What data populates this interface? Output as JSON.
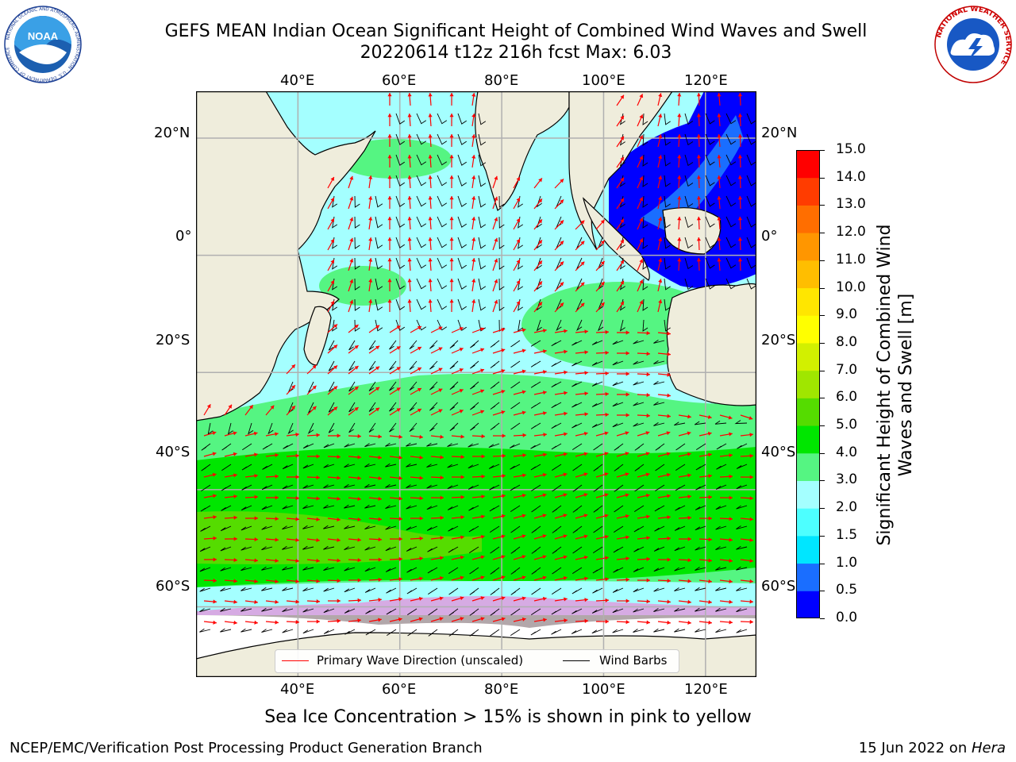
{
  "title": {
    "line1": "GEFS MEAN Indian Ocean Significant Height of Combined Wind Waves and Swell",
    "line2": "20220614 t12z 216h fcst   Max: 6.03"
  },
  "logos": {
    "left": {
      "icon": "noaa-logo",
      "text": "NOAA",
      "ring_text": "NATIONAL OCEANIC AND ATMOSPHERIC ADMINISTRATION · U.S. DEPARTMENT OF COMMERCE"
    },
    "right": {
      "icon": "nws-logo",
      "ring_text": "NATIONAL WEATHER SERVICE"
    }
  },
  "map": {
    "projection": "equirectangular",
    "lon_range": [
      20,
      130
    ],
    "lat_range": [
      -72,
      28
    ],
    "grid": true,
    "lon_ticks_top": [
      "40°E",
      "60°E",
      "80°E",
      "100°E",
      "120°E"
    ],
    "lon_ticks_bottom": [
      "40°E",
      "60°E",
      "80°E",
      "100°E",
      "120°E"
    ],
    "lat_ticks_left": [
      "20°N",
      "0°",
      "20°S",
      "40°S",
      "60°S"
    ],
    "lat_ticks_right": [
      "20°N",
      "0°",
      "20°S",
      "40°S",
      "60°S"
    ],
    "colors": {
      "land": "#efeddc",
      "ice": "#ffffff",
      "vector": "#ff0000",
      "barb": "#000000",
      "grid": "#b0b0b0"
    },
    "wave_height_bands": [
      {
        "range": "0.0-1.0",
        "region": "South China Sea / Indonesian seas"
      },
      {
        "range": "2.0-3.0",
        "region": "Arabian Sea, Bay of Bengal, tropical Indian Ocean"
      },
      {
        "range": "3.0-4.0",
        "region": "southern subtropics 25°S-40°S"
      },
      {
        "range": "4.0-6.0",
        "region": "Southern Ocean 42°S-58°S"
      }
    ]
  },
  "legend": {
    "items": [
      {
        "label": "Primary Wave Direction (unscaled)",
        "color": "#ff0000"
      },
      {
        "label": "Wind Barbs",
        "color": "#000000"
      }
    ]
  },
  "colorbar": {
    "label": "Significant Height of Combined Wind Waves and Swell [m]",
    "ticks": [
      "0.0",
      "0.5",
      "1.0",
      "1.5",
      "2.0",
      "3.0",
      "4.0",
      "5.0",
      "6.0",
      "7.0",
      "8.0",
      "9.0",
      "10.0",
      "11.0",
      "12.0",
      "13.0",
      "14.0",
      "15.0"
    ],
    "colors": [
      "#0000ff",
      "#1a6eff",
      "#00e6ff",
      "#4dffff",
      "#a4ffff",
      "#55f582",
      "#00e600",
      "#55dc00",
      "#a0e600",
      "#d2f000",
      "#ffff00",
      "#ffe600",
      "#ffbe00",
      "#ff9600",
      "#ff6e00",
      "#ff3c00",
      "#ff0000"
    ]
  },
  "subcaption": "Sea Ice Concentration > 15% is shown in pink to yellow",
  "footer": {
    "left": "NCEP/EMC/Verification Post Processing Product Generation Branch",
    "date": "15 Jun 2022 on ",
    "host": "Hera"
  }
}
